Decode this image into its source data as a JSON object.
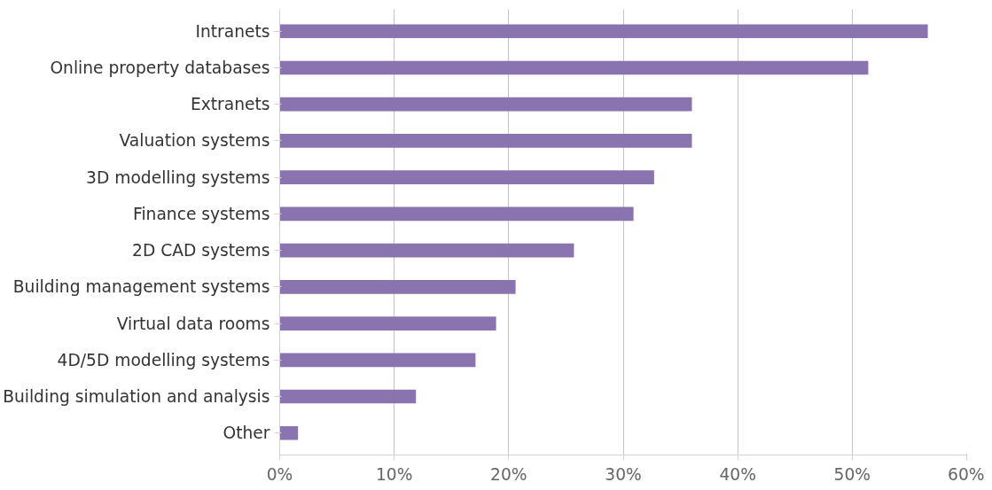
{
  "chart_data": {
    "type": "bar",
    "orientation": "horizontal",
    "categories": [
      "Intranets",
      "Online property databases",
      "Extranets",
      "Valuation systems",
      "3D modelling systems",
      "Finance systems",
      "2D CAD systems",
      "Building management systems",
      "Virtual data rooms",
      "4D/5D modelling systems",
      "Building simulation and analysis",
      "Other"
    ],
    "values": [
      56.6,
      51.4,
      36,
      36,
      32.7,
      30.9,
      25.7,
      20.6,
      18.9,
      17.1,
      11.9,
      1.6
    ],
    "color": "#8a74b0",
    "xlim": [
      0,
      60
    ],
    "xticks": [
      {
        "value": 0,
        "label": "0%"
      },
      {
        "value": 10,
        "label": "10%"
      },
      {
        "value": 20,
        "label": "20%"
      },
      {
        "value": 30,
        "label": "30%"
      },
      {
        "value": 40,
        "label": "40%"
      },
      {
        "value": 50,
        "label": "50%"
      },
      {
        "value": 60,
        "label": "60%"
      }
    ],
    "grid": "x"
  }
}
